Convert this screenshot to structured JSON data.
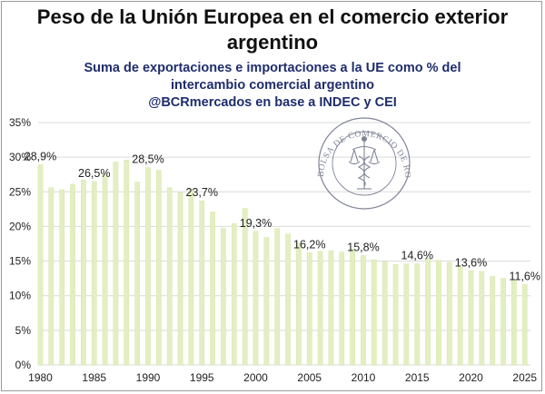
{
  "header": {
    "title_line1": "Peso de la Unión Europea en el comercio exterior",
    "title_line2": "argentino",
    "subtitle_line1": "Suma de exportaciones e importaciones a la UE como % del",
    "subtitle_line2": "intercambio comercial argentino",
    "subtitle_line3": "@BCRmercados en base a INDEC y CEI"
  },
  "watermark": {
    "text": "BOLSA DE COMERCIO DE ROSARIO",
    "icon": "caduceus-scales-icon",
    "color": "#6b6f86"
  },
  "colors": {
    "bar": "#e3efc2",
    "bar_stroke": "#d6e6a8",
    "grid": "#d9d9d9",
    "title": "#111111",
    "subtitle": "#1f2d6b"
  },
  "chart_data": {
    "type": "bar",
    "title": "Peso de la Unión Europea en el comercio exterior argentino",
    "xlabel": "",
    "ylabel": "",
    "ylim": [
      0,
      35
    ],
    "grid": true,
    "legend": "none",
    "yticks": [
      "0%",
      "5%",
      "10%",
      "15%",
      "20%",
      "25%",
      "30%",
      "35%"
    ],
    "xticks": [
      "1980",
      "1985",
      "1990",
      "1995",
      "2000",
      "2005",
      "2010",
      "2015",
      "2020",
      "2025"
    ],
    "categories": [
      1980,
      1981,
      1982,
      1983,
      1984,
      1985,
      1986,
      1987,
      1988,
      1989,
      1990,
      1991,
      1992,
      1993,
      1994,
      1995,
      1996,
      1997,
      1998,
      1999,
      2000,
      2001,
      2002,
      2003,
      2004,
      2005,
      2006,
      2007,
      2008,
      2009,
      2010,
      2011,
      2012,
      2013,
      2014,
      2015,
      2016,
      2017,
      2018,
      2019,
      2020,
      2021,
      2022,
      2023,
      2024,
      2025
    ],
    "values": [
      28.9,
      25.6,
      25.3,
      26.1,
      26.7,
      26.5,
      27.6,
      29.3,
      29.6,
      26.4,
      28.5,
      28.1,
      25.6,
      24.9,
      25.4,
      23.7,
      22.1,
      19.7,
      20.4,
      22.6,
      19.3,
      18.4,
      19.7,
      18.9,
      17.6,
      16.2,
      16.4,
      16.5,
      16.3,
      16.7,
      15.8,
      15.2,
      14.9,
      14.5,
      14.6,
      14.6,
      15.4,
      15.1,
      14.8,
      14.2,
      13.6,
      13.5,
      12.8,
      12.5,
      12.2,
      11.6
    ],
    "data_labels": [
      {
        "year": 1980,
        "text": "28,9%"
      },
      {
        "year": 1985,
        "text": "26,5%"
      },
      {
        "year": 1990,
        "text": "28,5%"
      },
      {
        "year": 1995,
        "text": "23,7%"
      },
      {
        "year": 2000,
        "text": "19,3%"
      },
      {
        "year": 2005,
        "text": "16,2%"
      },
      {
        "year": 2010,
        "text": "15,8%"
      },
      {
        "year": 2015,
        "text": "14,6%"
      },
      {
        "year": 2020,
        "text": "13,6%"
      },
      {
        "year": 2025,
        "text": "11,6%"
      }
    ]
  }
}
